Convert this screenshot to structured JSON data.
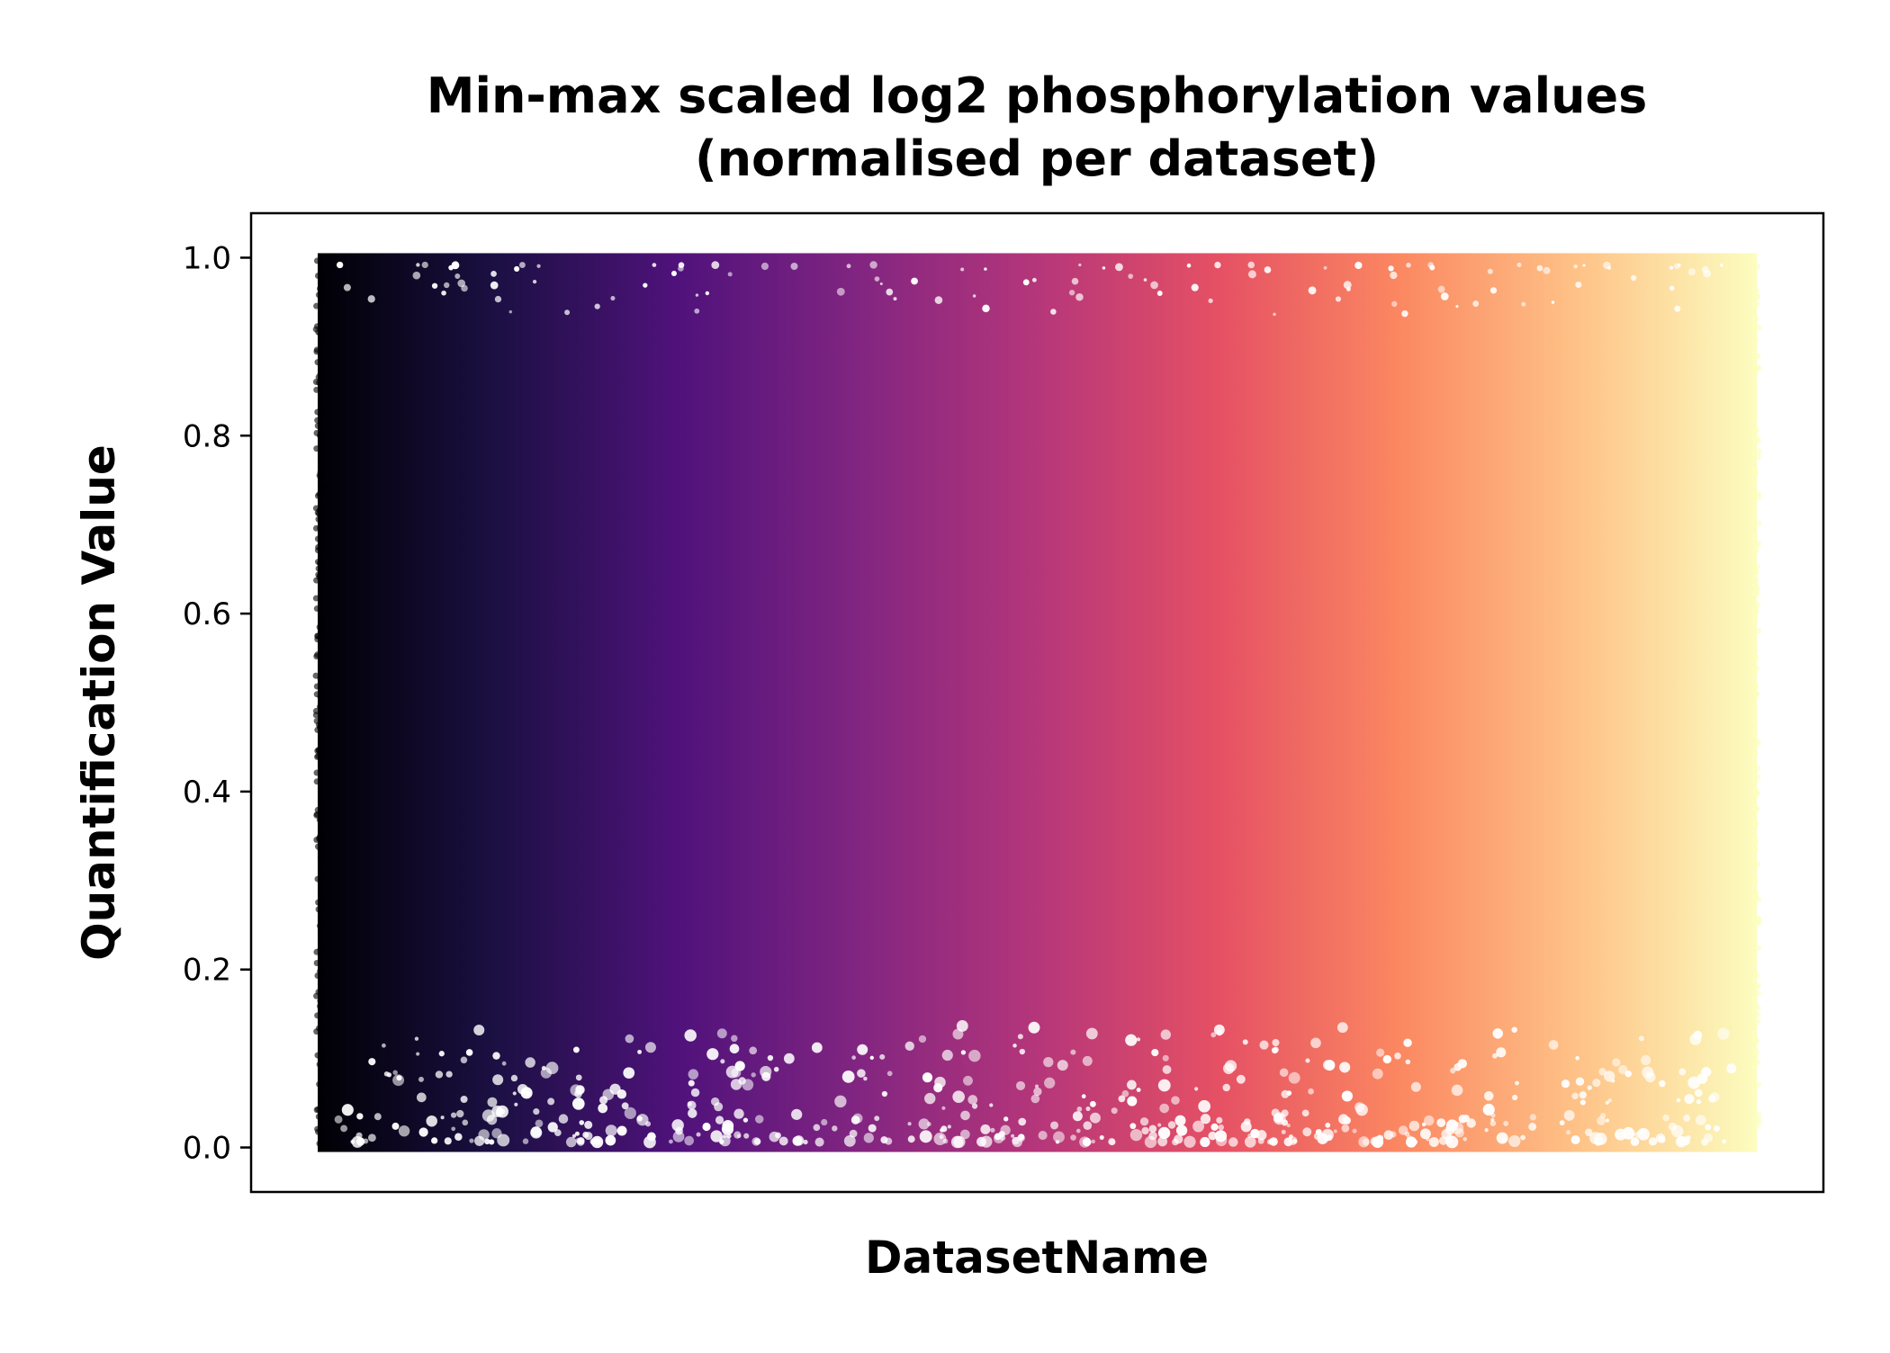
{
  "chart_data": {
    "type": "scatter",
    "title_line1": "Min-max scaled log2 phosphorylation values",
    "title_line2": "(normalised per dataset)",
    "xlabel": "DatasetName",
    "ylabel": "Quantification Value",
    "ylim": [
      -0.05,
      1.05
    ],
    "yticks": [
      0.0,
      0.2,
      0.4,
      0.6,
      0.8,
      1.0
    ],
    "ytick_labels": [
      "0.0",
      "0.2",
      "0.4",
      "0.6",
      "0.8",
      "1.0"
    ],
    "x_categories_shown": false,
    "grid": false,
    "legend": "none",
    "colormap": "magma",
    "colormap_stops": [
      "#000004",
      "#1c1044",
      "#4f127b",
      "#812581",
      "#b5367a",
      "#e55064",
      "#fb8761",
      "#fec287",
      "#fcfdbf"
    ],
    "value_range": [
      0.0,
      1.0
    ],
    "point_density_note": "dense points spanning the full 0.0–1.0 range for every dataset"
  }
}
